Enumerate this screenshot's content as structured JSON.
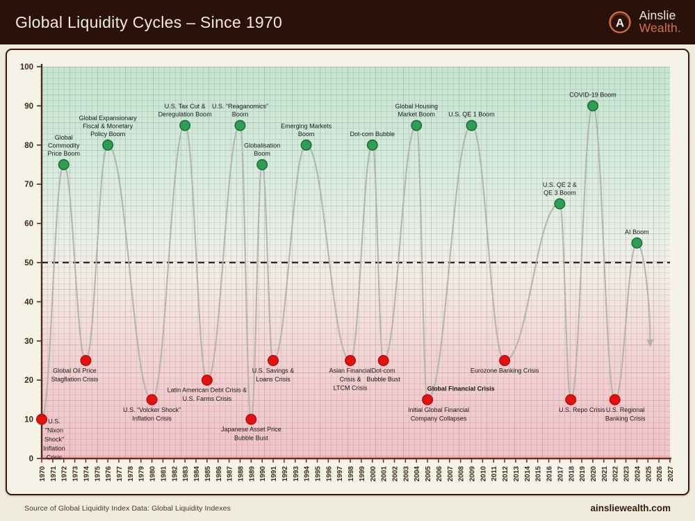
{
  "header": {
    "title": "Global Liquidity Cycles – Since 1970",
    "brand": {
      "monogram": "A",
      "line1": "Ainslie",
      "line2": "Wealth",
      "suffix": "."
    }
  },
  "footer": {
    "source": "Source of Global Liquidity Index Data: Global Liquidity Indexes",
    "website": "ainsliewealth.com"
  },
  "colors": {
    "header_bg": "#2a110b",
    "header_text": "#f3ecdc",
    "brand_accent": "#d0734b",
    "card_bg": "#f5f2e7",
    "card_border": "#36180f",
    "boom_fill": "#2f9d55",
    "boom_stroke": "#1d6f38",
    "crisis_fill": "#e01212",
    "crisis_stroke": "#b50f0f",
    "curve": "#b2b2aa",
    "midline": "#3f211b",
    "y_axis": "#4b2b1b",
    "x_axis": "#78281e",
    "tick_label": "#3c2a1c",
    "event_label": "#191919"
  },
  "chart_data": {
    "type": "line",
    "title": "Global Liquidity Cycles – Since 1970",
    "x_range": [
      1970,
      2027
    ],
    "x_tick_step": 1,
    "ylim": [
      0,
      100
    ],
    "y_ticks": [
      0,
      10,
      20,
      30,
      40,
      50,
      60,
      70,
      80,
      90,
      100
    ],
    "midline": 50,
    "grid": "fine",
    "legend": "none",
    "events": [
      {
        "year": 1970,
        "value": 10,
        "type": "crisis",
        "label": [
          "U.S.",
          "“Nixon",
          "Shock”",
          "Inflation",
          "Crisis"
        ],
        "pos": "right"
      },
      {
        "year": 1972,
        "value": 75,
        "type": "boom",
        "label": [
          "Global",
          "Commodity",
          "Price Boom"
        ]
      },
      {
        "year": 1974,
        "value": 25,
        "type": "crisis",
        "label": [
          "Global Oil Price",
          "Stagflation Crisis"
        ],
        "dx": -16
      },
      {
        "year": 1976,
        "value": 80,
        "type": "boom",
        "label": [
          "Global Expansionary",
          "Fiscal & Monetary",
          "Policy Boom"
        ]
      },
      {
        "year": 1980,
        "value": 15,
        "type": "crisis",
        "label": [
          "U.S. “Volcker Shock”",
          "Inflation Crisis"
        ]
      },
      {
        "year": 1983,
        "value": 85,
        "type": "boom",
        "label": [
          "U.S. Tax Cut &",
          "Deregulation Boom"
        ]
      },
      {
        "year": 1985,
        "value": 20,
        "type": "crisis",
        "label": [
          "Latin American Debt Crisis &",
          "U.S. Farms Crisis"
        ]
      },
      {
        "year": 1988,
        "value": 85,
        "type": "boom",
        "label": [
          "U.S. “Reaganomics”",
          "Boom"
        ]
      },
      {
        "year": 1989,
        "value": 10,
        "type": "crisis",
        "label": [
          "Japanese Asset Price",
          "Bubble Bust"
        ]
      },
      {
        "year": 1990,
        "value": 75,
        "type": "boom",
        "label": [
          "Globalisation",
          "Boom"
        ]
      },
      {
        "year": 1991,
        "value": 25,
        "type": "crisis",
        "label": [
          "U.S. Savings &",
          "Loans Crisis"
        ]
      },
      {
        "year": 1994,
        "value": 80,
        "type": "boom",
        "label": [
          "Emerging Markets",
          "Boom"
        ]
      },
      {
        "year": 1998,
        "value": 25,
        "type": "crisis",
        "label": [
          "Asian Financial",
          "Crisis &",
          "LTCM Crisis"
        ]
      },
      {
        "year": 2000,
        "value": 80,
        "type": "boom",
        "label": [
          "Dot-com Bubble"
        ]
      },
      {
        "year": 2001,
        "value": 25,
        "type": "crisis",
        "label": [
          "Dot-com",
          "Bubble Bust"
        ]
      },
      {
        "year": 2004,
        "value": 85,
        "type": "boom",
        "label": [
          "Global Housing",
          "Market Boom"
        ]
      },
      {
        "year": 2005,
        "value": 15,
        "type": "crisis",
        "label": [
          "Initial Global Financial",
          "Company Collapses"
        ],
        "dx": 16,
        "label2": {
          "text": "Global Financial Crisis",
          "dx": 48,
          "dy": -13
        }
      },
      {
        "year": 2009,
        "value": 85,
        "type": "boom",
        "label": [
          "U.S. QE 1 Boom"
        ]
      },
      {
        "year": 2012,
        "value": 25,
        "type": "crisis",
        "label": [
          "Eurozone Banking Crisis"
        ]
      },
      {
        "year": 2017,
        "value": 65,
        "type": "boom",
        "label": [
          "U.S. QE 2 &",
          "QE 3 Boom"
        ]
      },
      {
        "year": 2018,
        "value": 15,
        "type": "crisis",
        "label": [
          "U.S. Repo Crisis"
        ],
        "dx": 16
      },
      {
        "year": 2020,
        "value": 90,
        "type": "boom",
        "label": [
          "COVID-19 Boom"
        ]
      },
      {
        "year": 2022,
        "value": 15,
        "type": "crisis",
        "label": [
          "U.S. Regional",
          "Banking Crisis"
        ],
        "dx": 15
      },
      {
        "year": 2024,
        "value": 55,
        "type": "boom",
        "label": [
          "AI Boom"
        ]
      }
    ],
    "projection": {
      "end_year": 2025.2,
      "end_value": 30,
      "style": "down-arrow"
    }
  }
}
